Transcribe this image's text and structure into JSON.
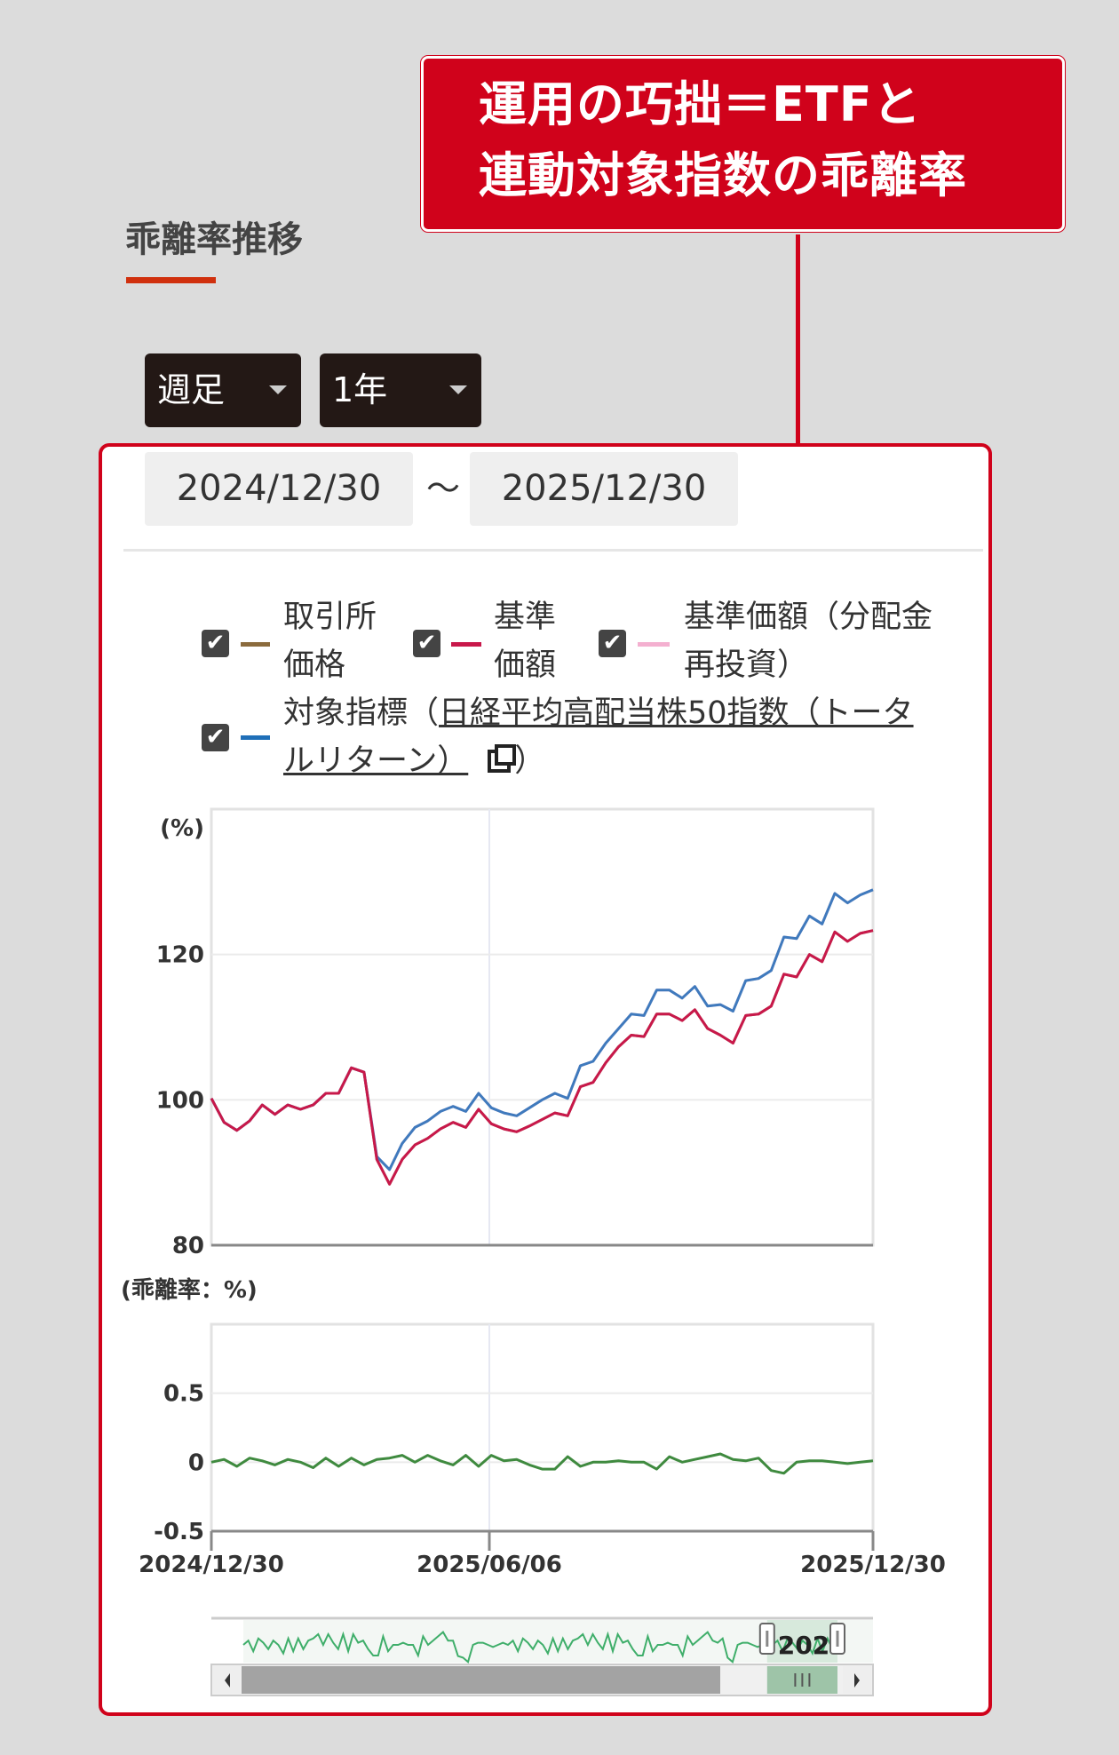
{
  "callout": {
    "line1": "運用の巧拙＝ETFと",
    "line2": "連動対象指数の乖離率"
  },
  "section": {
    "title": "乖離率推移"
  },
  "controls": {
    "interval": "週足",
    "period": "1年"
  },
  "date_range": {
    "from": "2024/12/30",
    "separator": "〜",
    "to": "2025/12/30"
  },
  "legend": {
    "items": [
      {
        "label_line1": "取引所",
        "label_line2": "価格",
        "color": "#8b6b3d",
        "checked": true
      },
      {
        "label_line1": "基準",
        "label_line2": "価額",
        "color": "#c8184a",
        "checked": true
      },
      {
        "label_line1": "基準価額（分配金",
        "label_line2": "再投資）",
        "color": "#f4b0d0",
        "checked": true
      },
      {
        "prefix": "対象指標（",
        "link": "日経平均高配当株50指数（トータルリターン）",
        "suffix": "）",
        "color": "#1f6fb8",
        "checked": true,
        "icon": "external-link-icon"
      }
    ],
    "check_glyph": "✔"
  },
  "chart_data": [
    {
      "type": "line",
      "ylabel": "(%)",
      "ylim": [
        80,
        140
      ],
      "yticks": [
        80,
        100,
        120
      ],
      "grid": true,
      "series": [
        {
          "name": "取引所価格",
          "color": "#8b6b3d",
          "values": [
            100.2,
            96.9,
            95.8,
            97.1,
            99.3,
            98,
            99.3,
            98.7,
            99.3,
            100.9,
            100.9,
            104.4,
            103.8,
            91.8,
            88.4,
            91.8,
            93.8,
            94.7,
            96,
            96.9,
            96.2,
            98.7,
            96.7,
            96,
            95.6,
            96.4,
            97.3,
            98.2,
            97.8,
            101.8,
            102.4,
            105.1,
            107.3,
            108.9,
            108.7,
            111.8,
            111.8,
            110.9,
            112.4,
            109.8,
            108.9,
            107.8,
            111.6,
            111.8,
            112.9,
            117.3,
            116.9,
            120,
            119,
            123.1,
            121.8,
            122.9,
            123.3
          ]
        },
        {
          "name": "基準価額（分配金再投資）",
          "color": "#f4b0d0",
          "values": [
            100.2,
            96.9,
            95.8,
            97.1,
            99.3,
            98,
            99.3,
            98.7,
            99.3,
            100.9,
            100.9,
            104.4,
            103.8,
            92.2,
            90.4,
            94,
            96.2,
            97.1,
            98.4,
            99.1,
            98.4,
            100.9,
            98.9,
            98.2,
            97.8,
            98.9,
            100,
            100.9,
            100.2,
            104.7,
            105.3,
            107.8,
            109.8,
            111.8,
            111.6,
            115.1,
            115.1,
            114,
            115.6,
            112.9,
            113.1,
            112.2,
            116.4,
            116.7,
            117.8,
            122.4,
            122.2,
            125.3,
            124.2,
            128.4,
            127.1,
            128.2,
            128.9
          ]
        },
        {
          "name": "対象指標（日経平均高配当株50指数（トータルリターン））",
          "color": "#1f6fb8",
          "values": [
            100.2,
            96.9,
            95.8,
            97.1,
            99.3,
            98,
            99.3,
            98.7,
            99.3,
            100.9,
            100.9,
            104.4,
            103.8,
            92.2,
            90.4,
            94,
            96.2,
            97.1,
            98.4,
            99.1,
            98.4,
            100.9,
            98.9,
            98.2,
            97.8,
            98.9,
            100,
            100.9,
            100.2,
            104.7,
            105.3,
            107.8,
            109.8,
            111.8,
            111.6,
            115.1,
            115.1,
            114,
            115.6,
            112.9,
            113.1,
            112.2,
            116.4,
            116.7,
            117.8,
            122.4,
            122.2,
            125.3,
            124.2,
            128.4,
            127.1,
            128.2,
            128.9
          ]
        },
        {
          "name": "基準価額",
          "color": "#c8184a",
          "values": [
            100.2,
            96.9,
            95.8,
            97.1,
            99.3,
            98,
            99.3,
            98.7,
            99.3,
            100.9,
            100.9,
            104.4,
            103.8,
            91.8,
            88.4,
            91.8,
            93.8,
            94.7,
            96,
            96.9,
            96.2,
            98.7,
            96.7,
            96,
            95.6,
            96.4,
            97.3,
            98.2,
            97.8,
            101.8,
            102.4,
            105.1,
            107.3,
            108.9,
            108.7,
            111.8,
            111.8,
            110.9,
            112.4,
            109.8,
            108.9,
            107.8,
            111.6,
            111.8,
            112.9,
            117.3,
            116.9,
            120,
            119,
            123.1,
            121.8,
            122.9,
            123.3
          ]
        }
      ]
    },
    {
      "type": "line",
      "ylabel": "(乖離率：%)",
      "ylim": [
        -0.5,
        1.0
      ],
      "yticks": [
        -0.5,
        0,
        0.5
      ],
      "yticklabels": [
        "-0.5",
        "0",
        "0.5"
      ],
      "xticklabels": [
        "2024/12/30",
        "2025/06/06",
        "2025/12/30"
      ],
      "grid": true,
      "series": [
        {
          "name": "乖離率",
          "color": "#3f8a3f",
          "values": [
            0,
            0.02,
            -0.03,
            0.03,
            0.01,
            -0.02,
            0.02,
            0,
            -0.04,
            0.03,
            -0.03,
            0.03,
            -0.02,
            0.02,
            0.03,
            0.05,
            0,
            0.05,
            0.01,
            -0.02,
            0.05,
            -0.03,
            0.05,
            0.01,
            0.02,
            -0.02,
            -0.05,
            -0.05,
            0.04,
            -0.03,
            0,
            0,
            0.01,
            0,
            0,
            -0.05,
            0.04,
            0,
            0.02,
            0.04,
            0.06,
            0.02,
            0.01,
            0.03,
            -0.06,
            -0.08,
            0,
            0.01,
            0.01,
            0,
            -0.01,
            0,
            0.01
          ]
        }
      ]
    }
  ],
  "navigator": {
    "label": "2025",
    "selection_fraction": [
      0.84,
      1.0
    ],
    "color": "#3fae6a"
  }
}
